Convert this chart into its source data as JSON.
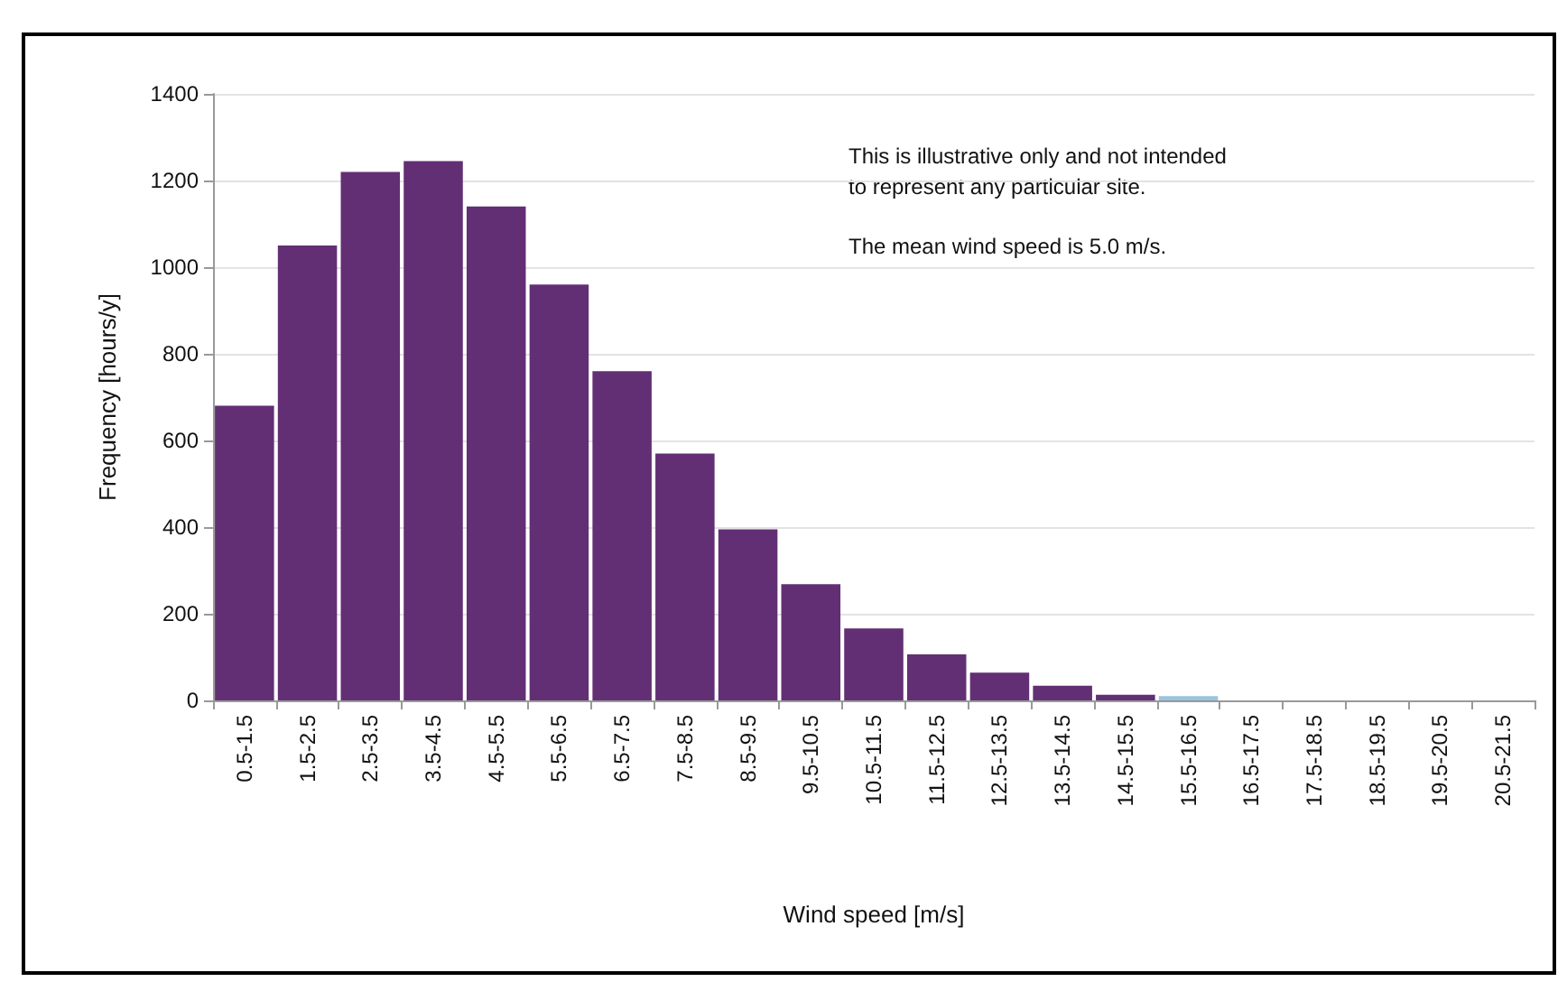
{
  "chart_data": {
    "type": "bar",
    "xlabel": "Wind speed [m/s]",
    "ylabel": "Frequency [hours/y]",
    "categories": [
      "0.5-1.5",
      "1.5-2.5",
      "2.5-3.5",
      "3.5-4.5",
      "4.5-5.5",
      "5.5-6.5",
      "6.5-7.5",
      "7.5-8.5",
      "8.5-9.5",
      "9.5-10.5",
      "10.5-11.5",
      "11.5-12.5",
      "12.5-13.5",
      "13.5-14.5",
      "14.5-15.5",
      "15.5-16.5",
      "16.5-17.5",
      "17.5-18.5",
      "18.5-19.5",
      "19.5-20.5",
      "20.5-21.5"
    ],
    "values": [
      680,
      1050,
      1220,
      1245,
      1140,
      960,
      760,
      570,
      395,
      268,
      166,
      106,
      64,
      34,
      13,
      10,
      0,
      0,
      0,
      0,
      0
    ],
    "colors": [
      "#622f74",
      "#622f74",
      "#622f74",
      "#622f74",
      "#622f74",
      "#622f74",
      "#622f74",
      "#622f74",
      "#622f74",
      "#622f74",
      "#622f74",
      "#622f74",
      "#622f74",
      "#622f74",
      "#622f74",
      "#9ac4e0",
      "#622f74",
      "#622f74",
      "#622f74",
      "#622f74",
      "#622f74"
    ],
    "ylim": [
      0,
      1400
    ],
    "yticks": [
      0,
      200,
      400,
      600,
      800,
      1000,
      1200,
      1400
    ],
    "grid": "y",
    "annotations": [
      "This is illustrative only and not intended\nto represent any particular site.",
      "The mean wind speed is 5.0 m/s."
    ]
  }
}
